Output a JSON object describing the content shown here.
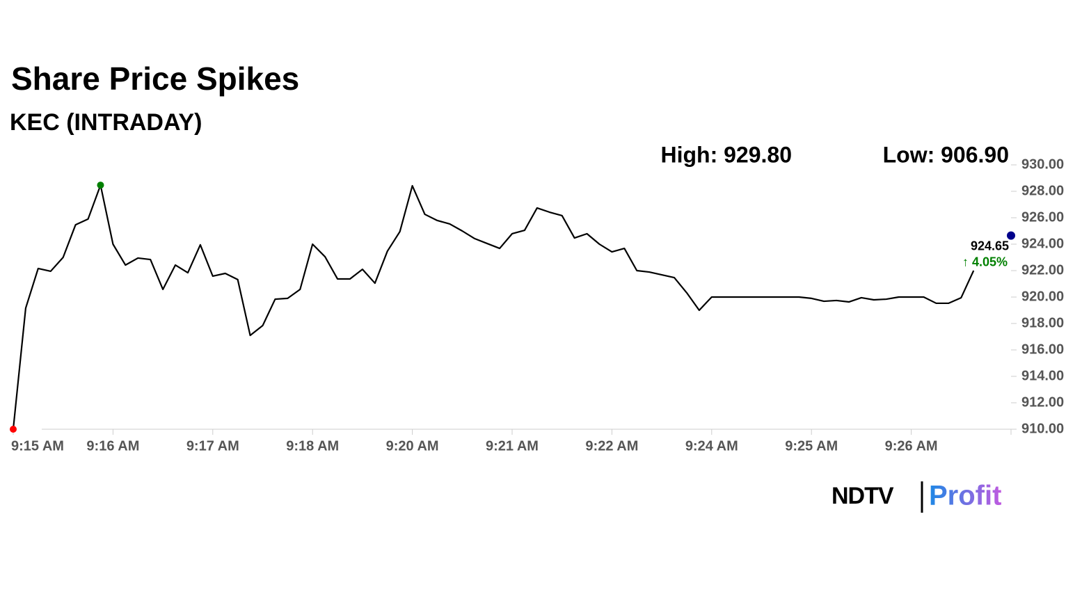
{
  "chart_data": {
    "type": "line",
    "title": "Share Price Spikes",
    "subtitle": "KEC (INTRADAY)",
    "high_label": "High: 929.80",
    "low_label": "Low: 906.90",
    "categories": [
      "9:15 AM",
      null,
      null,
      null,
      null,
      null,
      null,
      null,
      "9:16 AM",
      null,
      null,
      null,
      null,
      null,
      null,
      null,
      "9:17 AM",
      null,
      null,
      null,
      null,
      null,
      null,
      null,
      "9:18 AM",
      null,
      null,
      null,
      null,
      null,
      null,
      null,
      "9:20 AM",
      null,
      null,
      null,
      null,
      null,
      null,
      null,
      "9:21 AM",
      null,
      null,
      null,
      null,
      null,
      null,
      null,
      "9:22 AM",
      null,
      null,
      null,
      null,
      null,
      null,
      null,
      "9:24 AM",
      null,
      null,
      null,
      null,
      null,
      null,
      null,
      "9:25 AM",
      null,
      null,
      null,
      null,
      null,
      null,
      null,
      "9:26 AM",
      null,
      null,
      null,
      null,
      null
    ],
    "series": [
      {
        "name": "KEC",
        "color": "#000000",
        "values": [
          910.0,
          919.16,
          922.16,
          921.95,
          923.0,
          925.47,
          925.9,
          928.47,
          924.0,
          922.42,
          922.95,
          922.84,
          920.58,
          922.42,
          921.84,
          923.95,
          921.58,
          921.79,
          921.32,
          917.1,
          917.84,
          919.84,
          919.9,
          920.58,
          924.0,
          923.05,
          921.37,
          921.37,
          922.1,
          921.05,
          923.47,
          924.95,
          928.42,
          926.26,
          925.79,
          925.53,
          925.0,
          924.42,
          924.05,
          923.68,
          924.79,
          925.05,
          926.74,
          926.42,
          926.16,
          924.47,
          924.79,
          924.0,
          923.42,
          923.68,
          922.0,
          921.89,
          921.68,
          921.47,
          920.32,
          919.0,
          920.0,
          920.0,
          920.0,
          920.0,
          920.0,
          920.0,
          920.0,
          920.0,
          919.9,
          919.68,
          919.74,
          919.63,
          919.95,
          919.79,
          919.84,
          920.0,
          920.0,
          920.0,
          919.53,
          919.53,
          919.95,
          922.0
        ]
      }
    ],
    "last_price": 924.65,
    "change_label": "↑ 4.05%",
    "high_color": "#008000",
    "low_color": "#ff0000",
    "last_color": "#00008b",
    "change_color": "#008000",
    "ylim": [
      910,
      930
    ],
    "yticks": [
      {
        "value": 910,
        "label": "910.00"
      },
      {
        "value": 912,
        "label": "912.00"
      },
      {
        "value": 914,
        "label": "914.00"
      },
      {
        "value": 916,
        "label": "916.00"
      },
      {
        "value": 918,
        "label": "918.00"
      },
      {
        "value": 920,
        "label": "920.00"
      },
      {
        "value": 922,
        "label": "922.00"
      },
      {
        "value": 924,
        "label": "924.00"
      },
      {
        "value": 926,
        "label": "926.00"
      },
      {
        "value": 928,
        "label": "928.00"
      },
      {
        "value": 930,
        "label": "930.00"
      }
    ],
    "grid": false
  },
  "logo": {
    "brand": "NDTV",
    "product": "Profit"
  }
}
